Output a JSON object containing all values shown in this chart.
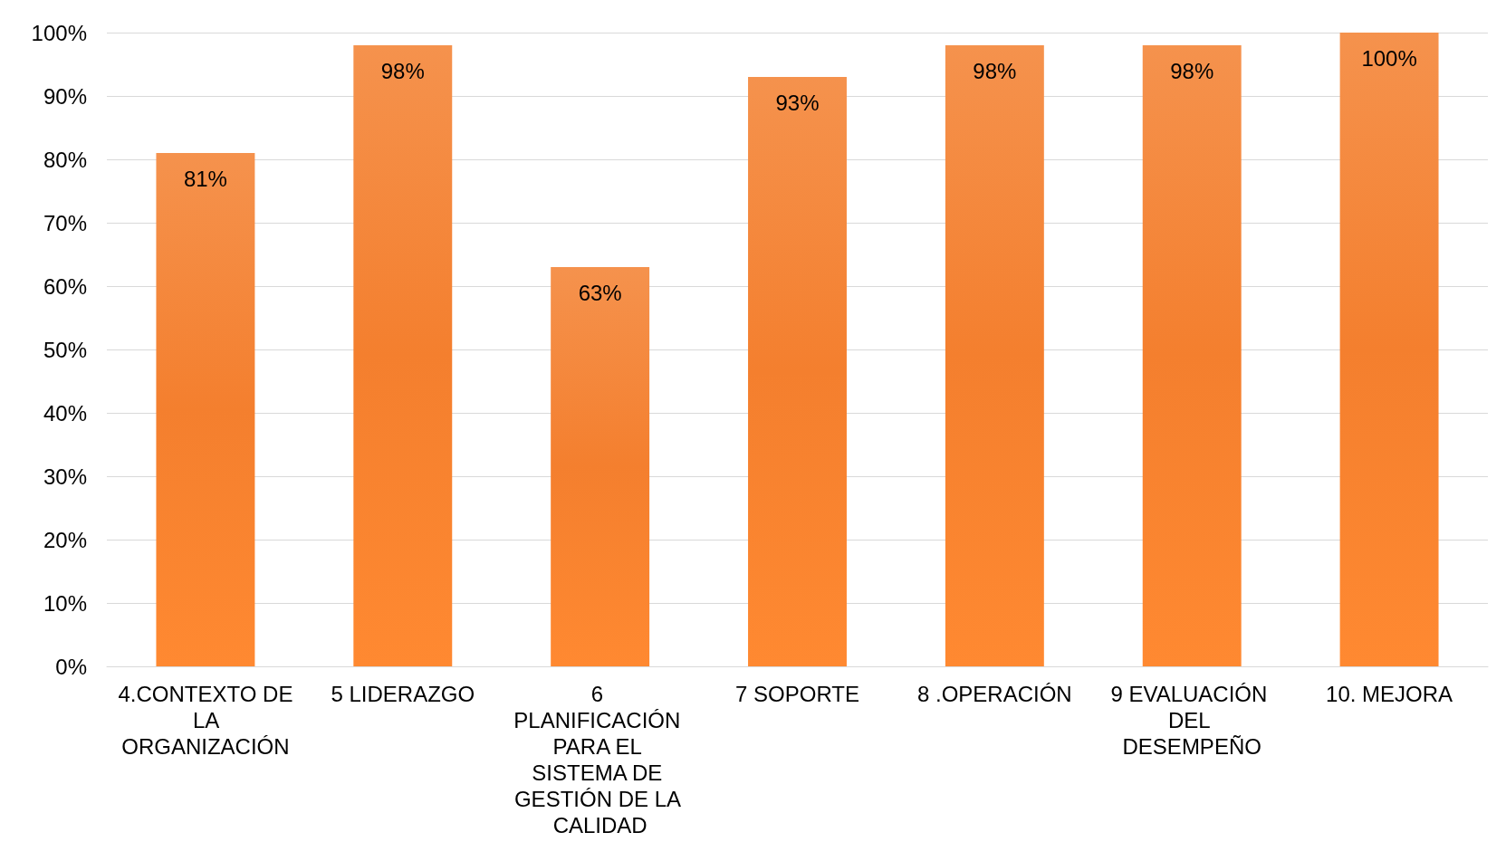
{
  "chart_data": {
    "type": "bar",
    "categories": [
      "4.CONTEXTO DE LA ORGANIZACIÓN",
      "5 LIDERAZGO",
      "6 PLANIFICACIÓN PARA EL SISTEMA DE GESTIÓN DE LA CALIDAD",
      "7 SOPORTE",
      "8 .OPERACIÓN",
      "9 EVALUACIÓN DEL DESEMPEÑO",
      "10. MEJORA"
    ],
    "values": [
      81,
      98,
      63,
      93,
      98,
      98,
      100
    ],
    "value_labels": [
      "81%",
      "98%",
      "63%",
      "93%",
      "98%",
      "98%",
      "100%"
    ],
    "color": "#f47f2e",
    "ylim": [
      0,
      100
    ],
    "yticks": [
      {
        "value": 0,
        "label": "0%"
      },
      {
        "value": 10,
        "label": "10%"
      },
      {
        "value": 20,
        "label": "20%"
      },
      {
        "value": 30,
        "label": "30%"
      },
      {
        "value": 40,
        "label": "40%"
      },
      {
        "value": 50,
        "label": "50%"
      },
      {
        "value": 60,
        "label": "60%"
      },
      {
        "value": 70,
        "label": "70%"
      },
      {
        "value": 80,
        "label": "80%"
      },
      {
        "value": 90,
        "label": "90%"
      },
      {
        "value": 100,
        "label": "100%"
      }
    ],
    "grid": "y"
  }
}
